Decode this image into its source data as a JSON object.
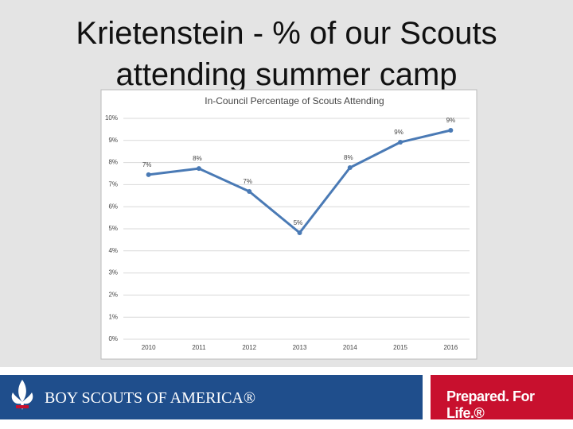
{
  "slide": {
    "title": "Krietenstein - % of our Scouts attending summer camp"
  },
  "chart_data": {
    "type": "line",
    "title": "In-Council Percentage of Scouts Attending",
    "categories": [
      "2010",
      "2011",
      "2012",
      "2013",
      "2014",
      "2015",
      "2016"
    ],
    "values": [
      7.45,
      7.73,
      6.69,
      4.82,
      7.77,
      8.92,
      9.46
    ],
    "value_labels": [
      "7%",
      "8%",
      "7%",
      "5%",
      "8%",
      "9%",
      "9%"
    ],
    "color": "#4a7ab5",
    "ylim": [
      0,
      10
    ],
    "yticks": [
      {
        "value": 0,
        "label": "0%"
      },
      {
        "value": 1,
        "label": "1%"
      },
      {
        "value": 2,
        "label": "2%"
      },
      {
        "value": 3,
        "label": "3%"
      },
      {
        "value": 4,
        "label": "4%"
      },
      {
        "value": 5,
        "label": "5%"
      },
      {
        "value": 6,
        "label": "6%"
      },
      {
        "value": 7,
        "label": "7%"
      },
      {
        "value": 8,
        "label": "8%"
      },
      {
        "value": 9,
        "label": "9%"
      },
      {
        "value": 10,
        "label": "10%"
      }
    ],
    "grid": true
  },
  "footer": {
    "brand": "BOY SCOUTS OF AMERICA®",
    "tagline": "Prepared. For Life.®"
  }
}
